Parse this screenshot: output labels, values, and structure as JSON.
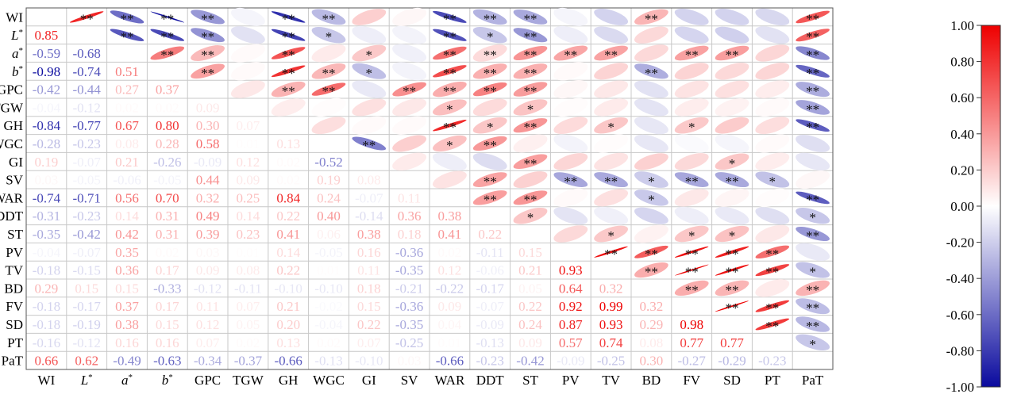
{
  "chart_data": {
    "type": "heatmap",
    "title": "",
    "xlabel": "",
    "ylabel": "",
    "variables": [
      {
        "name": "WI",
        "sup": ""
      },
      {
        "name": "L",
        "sup": "*"
      },
      {
        "name": "a",
        "sup": "*"
      },
      {
        "name": "b",
        "sup": "*"
      },
      {
        "name": "GPC",
        "sup": ""
      },
      {
        "name": "TGW",
        "sup": ""
      },
      {
        "name": "GH",
        "sup": ""
      },
      {
        "name": "WGC",
        "sup": ""
      },
      {
        "name": "GI",
        "sup": ""
      },
      {
        "name": "SV",
        "sup": ""
      },
      {
        "name": "WAR",
        "sup": ""
      },
      {
        "name": "DDT",
        "sup": ""
      },
      {
        "name": "ST",
        "sup": ""
      },
      {
        "name": "PV",
        "sup": ""
      },
      {
        "name": "TV",
        "sup": ""
      },
      {
        "name": "BD",
        "sup": ""
      },
      {
        "name": "FV",
        "sup": ""
      },
      {
        "name": "SD",
        "sup": ""
      },
      {
        "name": "PT",
        "sup": ""
      },
      {
        "name": "PaT",
        "sup": ""
      }
    ],
    "lower_triangle_values": [
      [],
      [
        0.85
      ],
      [
        -0.59,
        -0.68
      ],
      [
        -0.98,
        -0.74,
        0.51
      ],
      [
        -0.42,
        -0.44,
        0.27,
        0.37
      ],
      [
        -0.04,
        -0.12,
        0.02,
        0.02,
        0.09
      ],
      [
        -0.84,
        -0.77,
        0.67,
        0.8,
        0.3,
        0.07
      ],
      [
        -0.28,
        -0.23,
        0.08,
        0.28,
        0.58,
        0.01,
        0.13
      ],
      [
        0.19,
        -0.07,
        0.21,
        -0.26,
        -0.09,
        0.12,
        0.02,
        -0.52
      ],
      [
        0.03,
        -0.05,
        -0.06,
        -0.05,
        0.44,
        0.09,
        0.02,
        0.19,
        0.08
      ],
      [
        -0.74,
        -0.71,
        0.56,
        0.7,
        0.32,
        0.25,
        0.84,
        0.24,
        -0.07,
        0.11
      ],
      [
        -0.31,
        -0.23,
        0.14,
        0.31,
        0.49,
        0.14,
        0.22,
        0.4,
        -0.14,
        0.36,
        0.38
      ],
      [
        -0.35,
        -0.42,
        0.42,
        0.31,
        0.39,
        0.23,
        0.41,
        0.06,
        0.38,
        0.18,
        0.41,
        0.22
      ],
      [
        -0.04,
        -0.07,
        0.35,
        0.02,
        0.03,
        0.01,
        0.14,
        -0.05,
        0.16,
        -0.36,
        0.02,
        -0.11,
        0.15
      ],
      [
        -0.18,
        -0.15,
        0.36,
        0.17,
        0.09,
        0.08,
        0.22,
        0.01,
        0.11,
        -0.35,
        0.12,
        -0.06,
        0.21,
        0.93
      ],
      [
        0.29,
        0.15,
        0.15,
        -0.33,
        -0.12,
        -0.11,
        -0.1,
        -0.1,
        0.18,
        -0.21,
        -0.22,
        -0.17,
        0.05,
        0.64,
        0.32
      ],
      [
        -0.18,
        -0.17,
        0.37,
        0.17,
        0.11,
        0.07,
        0.21,
        -0.02,
        0.15,
        -0.36,
        0.09,
        -0.07,
        0.22,
        0.92,
        0.99,
        0.32
      ],
      [
        -0.18,
        -0.19,
        0.38,
        0.15,
        0.12,
        0.05,
        0.2,
        -0.04,
        0.22,
        -0.35,
        0.04,
        -0.09,
        0.24,
        0.87,
        0.93,
        0.29,
        0.98
      ],
      [
        -0.16,
        -0.12,
        0.16,
        0.16,
        0.07,
        0.02,
        0.13,
        0.02,
        0.07,
        -0.25,
        0.01,
        -0.13,
        0.09,
        0.57,
        0.74,
        0.08,
        0.77,
        0.77
      ],
      [
        0.66,
        0.62,
        -0.49,
        -0.63,
        -0.34,
        -0.37,
        -0.66,
        -0.13,
        -0.1,
        0.03,
        -0.66,
        -0.23,
        -0.42,
        -0.09,
        -0.25,
        0.3,
        -0.27,
        -0.29,
        -0.23
      ]
    ],
    "significance": [
      [
        0,
        1
      ],
      [
        0,
        2
      ],
      [
        0,
        3
      ],
      [
        0,
        4
      ],
      [
        0,
        6
      ],
      [
        0,
        7
      ],
      [
        0,
        10
      ],
      [
        0,
        11
      ],
      [
        0,
        12
      ],
      [
        0,
        15
      ],
      [
        0,
        19
      ],
      [
        1,
        2
      ],
      [
        1,
        3
      ],
      [
        1,
        4
      ],
      [
        1,
        6
      ],
      [
        1,
        7
      ],
      [
        1,
        10
      ],
      [
        1,
        11
      ],
      [
        1,
        12
      ],
      [
        1,
        19
      ],
      [
        2,
        3
      ],
      [
        2,
        4
      ],
      [
        2,
        6
      ],
      [
        2,
        8
      ],
      [
        2,
        10
      ],
      [
        2,
        11
      ],
      [
        2,
        12
      ],
      [
        2,
        13
      ],
      [
        2,
        14
      ],
      [
        2,
        16
      ],
      [
        2,
        17
      ],
      [
        2,
        19
      ],
      [
        3,
        4
      ],
      [
        3,
        6
      ],
      [
        3,
        7
      ],
      [
        3,
        8
      ],
      [
        3,
        10
      ],
      [
        3,
        11
      ],
      [
        3,
        12
      ],
      [
        3,
        15
      ],
      [
        3,
        19
      ],
      [
        4,
        6
      ],
      [
        4,
        7
      ],
      [
        4,
        9
      ],
      [
        4,
        10
      ],
      [
        4,
        11
      ],
      [
        4,
        12
      ],
      [
        4,
        19
      ],
      [
        5,
        10
      ],
      [
        5,
        12
      ],
      [
        5,
        19
      ],
      [
        6,
        10
      ],
      [
        6,
        11
      ],
      [
        6,
        12
      ],
      [
        6,
        14
      ],
      [
        6,
        16
      ],
      [
        6,
        19
      ],
      [
        7,
        8
      ],
      [
        7,
        10
      ],
      [
        7,
        11
      ],
      [
        8,
        12
      ],
      [
        8,
        17
      ],
      [
        9,
        11
      ],
      [
        9,
        13
      ],
      [
        9,
        14
      ],
      [
        9,
        15
      ],
      [
        9,
        16
      ],
      [
        9,
        17
      ],
      [
        9,
        18
      ],
      [
        10,
        11
      ],
      [
        10,
        12
      ],
      [
        10,
        15
      ],
      [
        10,
        19
      ],
      [
        11,
        12
      ],
      [
        11,
        19
      ],
      [
        12,
        14
      ],
      [
        12,
        16
      ],
      [
        12,
        17
      ],
      [
        12,
        19
      ],
      [
        13,
        14
      ],
      [
        13,
        15
      ],
      [
        13,
        16
      ],
      [
        13,
        17
      ],
      [
        13,
        18
      ],
      [
        14,
        15
      ],
      [
        14,
        16
      ],
      [
        14,
        17
      ],
      [
        14,
        18
      ],
      [
        14,
        19
      ],
      [
        15,
        16
      ],
      [
        15,
        17
      ],
      [
        15,
        19
      ],
      [
        16,
        17
      ],
      [
        16,
        18
      ],
      [
        16,
        19
      ],
      [
        17,
        18
      ],
      [
        17,
        19
      ],
      [
        18,
        19
      ]
    ],
    "significance_marks": {
      "0-1": "**",
      "0-2": "**",
      "0-3": "**",
      "0-4": "**",
      "0-6": "**",
      "0-7": "**",
      "0-10": "**",
      "0-11": "**",
      "0-12": "**",
      "0-15": "**",
      "0-19": "**",
      "1-2": "**",
      "1-3": "**",
      "1-4": "**",
      "1-6": "**",
      "1-7": "*",
      "1-10": "**",
      "1-11": "*",
      "1-12": "**",
      "1-19": "**",
      "2-3": "**",
      "2-4": "**",
      "2-6": "**",
      "2-8": "*",
      "2-10": "**",
      "2-11": "**",
      "2-12": "**",
      "2-13": "**",
      "2-14": "**",
      "2-16": "**",
      "2-17": "**",
      "2-19": "**",
      "3-4": "**",
      "3-6": "**",
      "3-7": "**",
      "3-8": "*",
      "3-10": "**",
      "3-11": "**",
      "3-12": "**",
      "3-15": "**",
      "3-19": "**",
      "4-6": "**",
      "4-7": "**",
      "4-9": "**",
      "4-10": "**",
      "4-11": "**",
      "4-12": "**",
      "4-19": "**",
      "5-10": "*",
      "5-12": "*",
      "5-19": "**",
      "6-10": "**",
      "6-11": "*",
      "6-12": "**",
      "6-14": "*",
      "6-16": "*",
      "6-19": "**",
      "7-8": "**",
      "7-10": "*",
      "7-11": "**",
      "8-12": "**",
      "8-17": "*",
      "9-11": "**",
      "9-13": "**",
      "9-14": "**",
      "9-15": "*",
      "9-16": "**",
      "9-17": "**",
      "9-18": "*",
      "10-11": "**",
      "10-12": "**",
      "10-15": "*",
      "10-19": "**",
      "11-12": "*",
      "11-19": "*",
      "12-14": "*",
      "12-16": "*",
      "12-17": "*",
      "12-19": "**",
      "13-14": "**",
      "13-15": "**",
      "13-16": "**",
      "13-17": "**",
      "13-18": "**",
      "14-15": "**",
      "14-16": "**",
      "14-17": "**",
      "14-18": "**",
      "14-19": "*",
      "15-16": "**",
      "15-17": "**",
      "15-19": "**",
      "16-17": "**",
      "16-18": "**",
      "16-19": "**",
      "17-18": "**",
      "17-19": "**",
      "18-19": "*"
    },
    "colorbar": {
      "range": [
        -1,
        1
      ],
      "ticks": [
        "1.00",
        "0.80",
        "0.60",
        "0.40",
        "0.20",
        "0.00",
        "-0.20",
        "-0.40",
        "-0.60",
        "-0.80",
        "-1.00"
      ],
      "colors": {
        "negative": "#0a0a9e",
        "neutral": "#ffffff",
        "positive": "#ee0000"
      }
    },
    "grid": true
  }
}
